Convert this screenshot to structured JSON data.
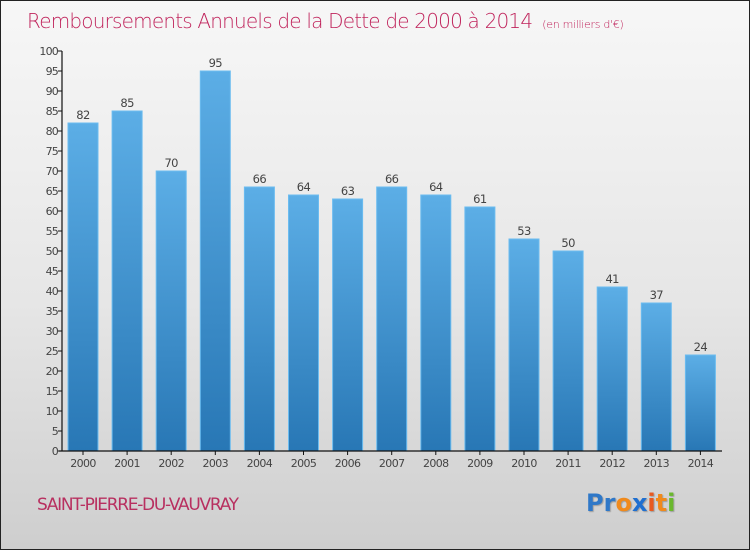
{
  "chart_data": {
    "type": "bar",
    "title": "Remboursements Annuels de la Dette de 2000 à 2014",
    "subtitle": "(en milliers d'€)",
    "xlabel": "",
    "ylabel": "",
    "categories": [
      "2000",
      "2001",
      "2002",
      "2003",
      "2004",
      "2005",
      "2006",
      "2007",
      "2008",
      "2009",
      "2010",
      "2011",
      "2012",
      "2013",
      "2014"
    ],
    "values": [
      82,
      85,
      70,
      95,
      66,
      64,
      63,
      66,
      64,
      61,
      53,
      50,
      41,
      37,
      24
    ],
    "ylim": [
      0,
      100
    ],
    "yticks": [
      0,
      5,
      10,
      15,
      20,
      25,
      30,
      35,
      40,
      45,
      50,
      55,
      60,
      65,
      70,
      75,
      80,
      85,
      90,
      95,
      100
    ],
    "grid": false,
    "legend": "none",
    "data_labels": true,
    "colors": {
      "bar_top": "#5caee6",
      "bar_bottom": "#2877b5",
      "bar_edge": "#6bbcf0",
      "title": "#c0245c",
      "axis": "#111111"
    }
  },
  "footer": {
    "commune": "SAINT-PIERRE-DU-VAUVRAY",
    "logo_letters": [
      {
        "ch": "P",
        "color": "#2f78c8"
      },
      {
        "ch": "r",
        "color": "#2f78c8"
      },
      {
        "ch": "o",
        "color": "#f08a1c"
      },
      {
        "ch": "x",
        "color": "#1f6fd0"
      },
      {
        "ch": "i",
        "color": "#e85a20"
      },
      {
        "ch": "t",
        "color": "#f08a1c"
      },
      {
        "ch": "i",
        "color": "#6ab82e"
      }
    ]
  }
}
